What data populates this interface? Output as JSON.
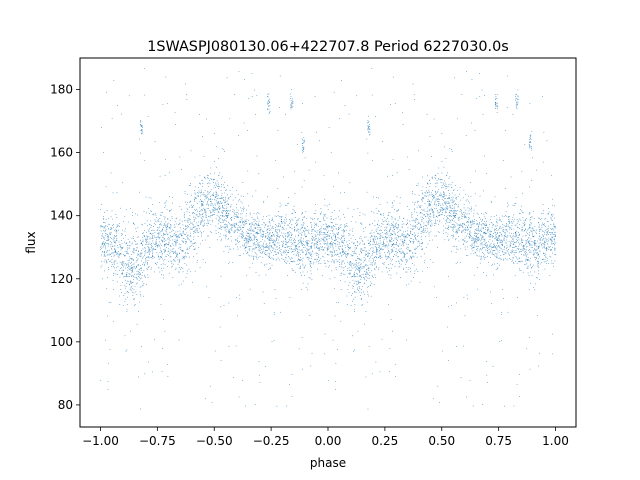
{
  "chart_data": {
    "type": "scatter",
    "title": "1SWASPJ080130.06+422707.8 Period 6227030.0s",
    "xlabel": "phase",
    "ylabel": "flux",
    "xlim": [
      -1.09,
      1.09
    ],
    "ylim": [
      73.0,
      190.0
    ],
    "xticks": [
      -1.0,
      -0.75,
      -0.5,
      -0.25,
      0.0,
      0.25,
      0.5,
      0.75,
      1.0
    ],
    "xtick_labels": [
      "−1.00",
      "−0.75",
      "−0.50",
      "−0.25",
      "0.00",
      "0.25",
      "0.50",
      "0.75",
      "1.00"
    ],
    "yticks": [
      80,
      100,
      120,
      140,
      160,
      180
    ],
    "ytick_labels": [
      "80",
      "100",
      "120",
      "140",
      "160",
      "180"
    ],
    "grid": false,
    "legend": "none",
    "marker_color": "#1f77b4",
    "points_per_cycle": 3000,
    "point_note": "Dense light curve: phase-folded flux repeated over two cycles (phase -1 to 1). Sampled trend of the central band below (mean flux per phase).",
    "trend": {
      "phase": [
        0.0,
        0.05,
        0.1,
        0.15,
        0.2,
        0.25,
        0.3,
        0.35,
        0.4,
        0.45,
        0.5,
        0.55,
        0.6,
        0.65,
        0.7,
        0.75,
        0.8,
        0.85,
        0.9,
        0.95,
        1.0
      ],
      "flux": [
        134,
        131,
        125,
        124,
        130,
        133,
        132,
        131,
        136,
        143,
        145,
        141,
        137,
        134,
        133,
        132,
        133,
        132,
        130,
        132,
        134
      ],
      "spread": [
        6,
        7,
        8,
        8,
        8,
        7,
        7,
        8,
        9,
        7,
        7,
        7,
        7,
        6,
        6,
        6,
        7,
        7,
        7,
        7,
        6
      ]
    },
    "clumps": [
      {
        "phase": 0.74,
        "flux": 176
      },
      {
        "phase": 0.83,
        "flux": 176
      },
      {
        "phase": 0.89,
        "flux": 163
      },
      {
        "phase": 0.18,
        "flux": 168
      },
      {
        "phase": -0.26,
        "flux": 176
      },
      {
        "phase": -0.16,
        "flux": 176
      },
      {
        "phase": -0.11,
        "flux": 163
      },
      {
        "phase": -0.82,
        "flux": 168
      }
    ]
  }
}
